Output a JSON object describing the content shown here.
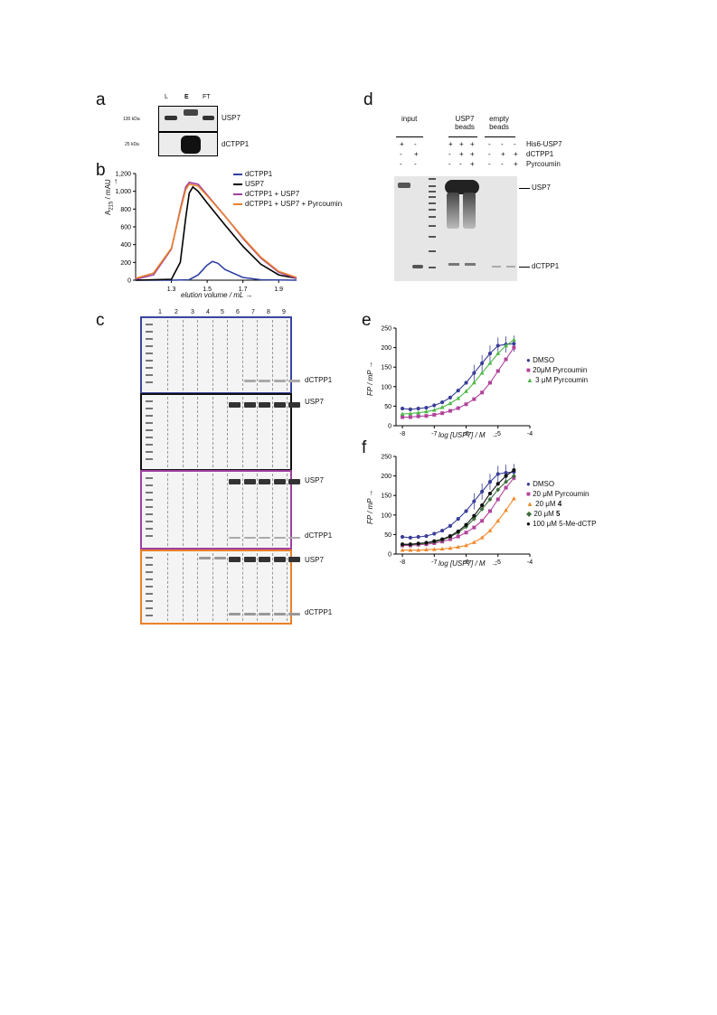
{
  "panel_labels": {
    "a": "a",
    "b": "b",
    "c": "c",
    "d": "d",
    "e": "e",
    "f": "f"
  },
  "panel_a": {
    "lanes": [
      "L",
      "E",
      "FT"
    ],
    "markers": [
      "130 kDa",
      "25 kDa"
    ],
    "bands": [
      "USP7",
      "dCTPP1"
    ]
  },
  "panel_b": {
    "legend": [
      "dCTPP1",
      "USP7",
      "dCTPP1 + USP7",
      "dCTPP1 + USP7 + Pyrcoumin"
    ],
    "ylabel_main": "A",
    "ylabel_sub": "215",
    "ylabel_rest": " / mAU",
    "xlabel": "elution volume / mL",
    "arrow": "→",
    "yticks": [
      "0",
      "200",
      "400",
      "600",
      "800",
      "1,000",
      "1,200"
    ],
    "xticks": [
      "1.3",
      "1.5",
      "1.7",
      "1.9"
    ]
  },
  "panel_c": {
    "lanes": [
      "1",
      "2",
      "3",
      "4",
      "5",
      "6",
      "7",
      "8",
      "9"
    ],
    "labels": [
      "dCTPP1",
      "USP7",
      "USP7",
      "dCTPP1",
      "USP7",
      "dCTPP1"
    ]
  },
  "panel_d": {
    "headers": [
      "input",
      "USP7 beads",
      "empty beads"
    ],
    "rows": [
      {
        "label": "His6-USP7",
        "signs": [
          "+",
          "-",
          "+",
          "+",
          "+",
          "-",
          "-",
          "-"
        ]
      },
      {
        "label": "dCTPP1",
        "signs": [
          "-",
          "+",
          "-",
          "+",
          "+",
          "-",
          "+",
          "+"
        ]
      },
      {
        "label": "Pyrcoumin",
        "signs": [
          "-",
          "-",
          "-",
          "-",
          "+",
          "-",
          "-",
          "+"
        ]
      }
    ],
    "bands": [
      "USP7",
      "dCTPP1"
    ]
  },
  "panel_e": {
    "ylabel": "FP / mP",
    "xlabel": "log [USP7] / M",
    "arrow": "→",
    "yticks": [
      "0",
      "50",
      "100",
      "150",
      "200",
      "250"
    ],
    "xticks": [
      "-8",
      "-7",
      "-6",
      "-5",
      "-4"
    ],
    "legend": [
      "DMSO",
      "20μM Pyrcoumin",
      "3 μM Pyrcoumin"
    ]
  },
  "panel_f": {
    "ylabel": "FP / mP",
    "xlabel": "log [USP7] / M",
    "arrow": "→",
    "yticks": [
      "0",
      "50",
      "100",
      "150",
      "200",
      "250"
    ],
    "xticks": [
      "-8",
      "-7",
      "-6",
      "-5",
      "-4"
    ],
    "legend": [
      {
        "prefix": "DMSO",
        "bold": ""
      },
      {
        "prefix": "20 μM Pyrcoumin",
        "bold": ""
      },
      {
        "prefix": "20 μM ",
        "bold": "4"
      },
      {
        "prefix": "20 μM ",
        "bold": "5"
      },
      {
        "prefix": "100 μM 5-Me-dCTP",
        "bold": ""
      }
    ]
  },
  "chart_data": [
    {
      "type": "line",
      "xlabel": "elution volume / mL",
      "ylabel": "A215 / mAU",
      "xlim": [
        1.1,
        2.0
      ],
      "ylim": [
        0,
        1200
      ],
      "series": [
        {
          "name": "dCTPP1",
          "color": "#3040a0",
          "x": [
            1.1,
            1.3,
            1.4,
            1.45,
            1.5,
            1.53,
            1.56,
            1.6,
            1.7,
            1.8,
            2.0
          ],
          "values": [
            0,
            0,
            5,
            60,
            170,
            210,
            190,
            120,
            30,
            5,
            0
          ]
        },
        {
          "name": "USP7",
          "color": "#000000",
          "x": [
            1.1,
            1.3,
            1.35,
            1.38,
            1.4,
            1.42,
            1.45,
            1.5,
            1.6,
            1.7,
            1.8,
            1.9,
            2.0
          ],
          "values": [
            0,
            10,
            200,
            700,
            980,
            1050,
            1000,
            870,
            620,
            380,
            180,
            60,
            20
          ]
        },
        {
          "name": "dCTPP1 + USP7",
          "color": "#a040a0",
          "x": [
            1.1,
            1.2,
            1.3,
            1.35,
            1.38,
            1.4,
            1.45,
            1.5,
            1.6,
            1.7,
            1.8,
            1.9,
            2.0
          ],
          "values": [
            10,
            60,
            350,
            800,
            1050,
            1100,
            1080,
            960,
            720,
            470,
            250,
            90,
            20
          ]
        },
        {
          "name": "dCTPP1 + USP7 + Pyrcoumin",
          "color": "#e8802a",
          "x": [
            1.1,
            1.2,
            1.3,
            1.35,
            1.38,
            1.4,
            1.45,
            1.5,
            1.6,
            1.7,
            1.8,
            1.9,
            2.0
          ],
          "values": [
            20,
            80,
            360,
            780,
            1020,
            1080,
            1060,
            950,
            720,
            480,
            260,
            100,
            30
          ]
        }
      ]
    },
    {
      "type": "scatter",
      "xlabel": "log [USP7] / M",
      "ylabel": "FP / mP",
      "xlim": [
        -8.2,
        -4
      ],
      "ylim": [
        0,
        250
      ],
      "series": [
        {
          "name": "DMSO",
          "color": "#3a3f98",
          "x": [
            -8,
            -7.75,
            -7.5,
            -7.25,
            -7,
            -6.75,
            -6.5,
            -6.25,
            -6,
            -5.75,
            -5.5,
            -5.25,
            -5,
            -4.75,
            -4.5
          ],
          "values": [
            44,
            42,
            44,
            46,
            52,
            60,
            72,
            90,
            110,
            135,
            160,
            185,
            205,
            208,
            210
          ]
        },
        {
          "name": "20μM Pyrcoumin",
          "color": "#b1439b",
          "x": [
            -8,
            -7.75,
            -7.5,
            -7.25,
            -7,
            -6.75,
            -6.5,
            -6.25,
            -6,
            -5.75,
            -5.5,
            -5.25,
            -5,
            -4.75,
            -4.5
          ],
          "values": [
            22,
            22,
            24,
            25,
            28,
            32,
            38,
            45,
            55,
            68,
            85,
            110,
            140,
            170,
            200
          ]
        },
        {
          "name": "3 μM Pyrcoumin",
          "color": "#4db848",
          "x": [
            -8,
            -7.75,
            -7.5,
            -7.25,
            -7,
            -6.75,
            -6.5,
            -6.25,
            -6,
            -5.75,
            -5.5,
            -5.25,
            -5,
            -4.75,
            -4.5
          ],
          "values": [
            30,
            31,
            33,
            36,
            40,
            47,
            57,
            70,
            88,
            110,
            135,
            160,
            185,
            205,
            220
          ]
        }
      ]
    },
    {
      "type": "scatter",
      "xlabel": "log [USP7] / M",
      "ylabel": "FP / mP",
      "xlim": [
        -8.2,
        -4
      ],
      "ylim": [
        0,
        250
      ],
      "series": [
        {
          "name": "DMSO",
          "color": "#3a3f98",
          "x": [
            -8,
            -7.75,
            -7.5,
            -7.25,
            -7,
            -6.75,
            -6.5,
            -6.25,
            -6,
            -5.75,
            -5.5,
            -5.25,
            -5,
            -4.75,
            -4.5
          ],
          "values": [
            44,
            42,
            44,
            46,
            52,
            60,
            72,
            90,
            110,
            135,
            160,
            185,
            205,
            208,
            210
          ]
        },
        {
          "name": "20 μM Pyrcoumin",
          "color": "#b1439b",
          "x": [
            -8,
            -7.75,
            -7.5,
            -7.25,
            -7,
            -6.75,
            -6.5,
            -6.25,
            -6,
            -5.75,
            -5.5,
            -5.25,
            -5,
            -4.75,
            -4.5
          ],
          "values": [
            22,
            22,
            24,
            25,
            28,
            32,
            38,
            45,
            55,
            68,
            85,
            110,
            140,
            170,
            195
          ]
        },
        {
          "name": "20 μM 4",
          "color": "#f3892b",
          "x": [
            -8,
            -7.75,
            -7.5,
            -7.25,
            -7,
            -6.75,
            -6.5,
            -6.25,
            -6,
            -5.75,
            -5.5,
            -5.25,
            -5,
            -4.75,
            -4.5
          ],
          "values": [
            10,
            10,
            10,
            11,
            12,
            13,
            15,
            18,
            22,
            30,
            42,
            60,
            85,
            112,
            142
          ]
        },
        {
          "name": "20 μM 5",
          "color": "#3e6f3e",
          "x": [
            -8,
            -7.75,
            -7.5,
            -7.25,
            -7,
            -6.75,
            -6.5,
            -6.25,
            -6,
            -5.75,
            -5.5,
            -5.25,
            -5,
            -4.75,
            -4.5
          ],
          "values": [
            24,
            24,
            26,
            28,
            31,
            36,
            44,
            55,
            70,
            90,
            115,
            140,
            165,
            185,
            200
          ]
        },
        {
          "name": "100 μM 5-Me-dCTP",
          "color": "#111111",
          "x": [
            -8,
            -7.75,
            -7.5,
            -7.25,
            -7,
            -6.75,
            -6.5,
            -6.25,
            -6,
            -5.75,
            -5.5,
            -5.25,
            -5,
            -4.75,
            -4.5
          ],
          "values": [
            25,
            25,
            27,
            29,
            33,
            38,
            46,
            58,
            75,
            98,
            125,
            155,
            180,
            200,
            215
          ]
        }
      ]
    }
  ]
}
